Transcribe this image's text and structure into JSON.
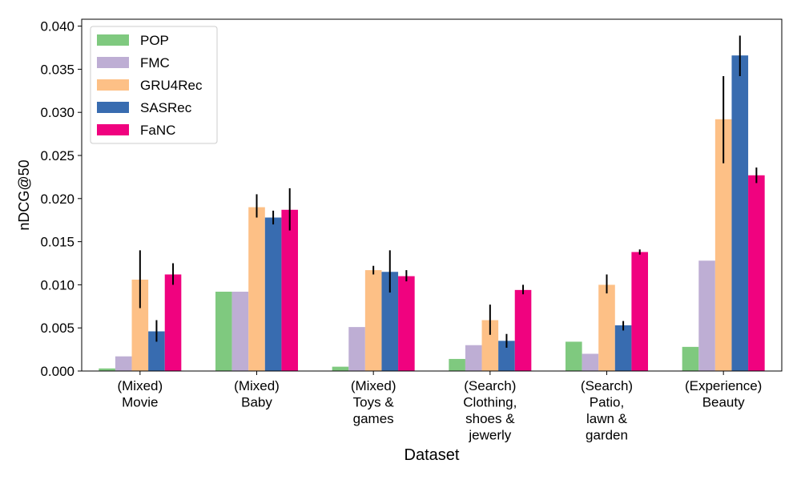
{
  "chart_data": {
    "type": "bar",
    "title": "",
    "xlabel": "Dataset",
    "ylabel": "nDCG@50",
    "ylim": [
      0,
      0.0408
    ],
    "yticks": [
      "0.000",
      "0.005",
      "0.010",
      "0.015",
      "0.020",
      "0.025",
      "0.030",
      "0.035",
      "0.040"
    ],
    "ytick_values": [
      0,
      0.005,
      0.01,
      0.015,
      0.02,
      0.025,
      0.03,
      0.035,
      0.04
    ],
    "grid": false,
    "legend_position": "top-left",
    "categories": [
      [
        "(Mixed)",
        "Movie"
      ],
      [
        "(Mixed)",
        "Baby"
      ],
      [
        "(Mixed)",
        "Toys &",
        "games"
      ],
      [
        "(Search)",
        "Clothing,",
        "shoes &",
        "jewerly"
      ],
      [
        "(Search)",
        "Patio,",
        "lawn &",
        "garden"
      ],
      [
        "(Experience)",
        "Beauty"
      ]
    ],
    "series": [
      {
        "name": "POP",
        "color": "#7fc97f",
        "values": [
          0.0003,
          0.0092,
          0.0005,
          0.0014,
          0.0034,
          0.0028
        ],
        "errors": [
          null,
          null,
          null,
          null,
          null,
          null
        ]
      },
      {
        "name": "FMC",
        "color": "#beaed4",
        "values": [
          0.0017,
          0.0092,
          0.0051,
          0.003,
          0.002,
          0.0128
        ],
        "errors": [
          null,
          null,
          null,
          null,
          null,
          null
        ]
      },
      {
        "name": "GRU4Rec",
        "color": "#fdc086",
        "values": [
          0.0106,
          0.019,
          0.0117,
          0.0059,
          0.01,
          0.0292
        ],
        "errors": [
          [
            0.0073,
            0.014
          ],
          [
            0.0178,
            0.0205
          ],
          [
            0.0112,
            0.0122
          ],
          [
            0.0042,
            0.0077
          ],
          [
            0.009,
            0.0112
          ],
          [
            0.0241,
            0.0342
          ]
        ]
      },
      {
        "name": "SASRec",
        "color": "#386cb0",
        "values": [
          0.0046,
          0.0178,
          0.0115,
          0.0035,
          0.0053,
          0.0366
        ],
        "errors": [
          [
            0.0034,
            0.0059
          ],
          [
            0.017,
            0.0186
          ],
          [
            0.0091,
            0.014
          ],
          [
            0.0027,
            0.0043
          ],
          [
            0.0047,
            0.0058
          ],
          [
            0.0342,
            0.0389
          ]
        ]
      },
      {
        "name": "FaNC",
        "color": "#f0027f",
        "values": [
          0.0112,
          0.0187,
          0.011,
          0.0094,
          0.0138,
          0.0227
        ],
        "errors": [
          [
            0.01,
            0.0125
          ],
          [
            0.0163,
            0.0212
          ],
          [
            0.0104,
            0.0117
          ],
          [
            0.0089,
            0.01
          ],
          [
            0.0135,
            0.0141
          ],
          [
            0.0218,
            0.0236
          ]
        ]
      }
    ]
  }
}
